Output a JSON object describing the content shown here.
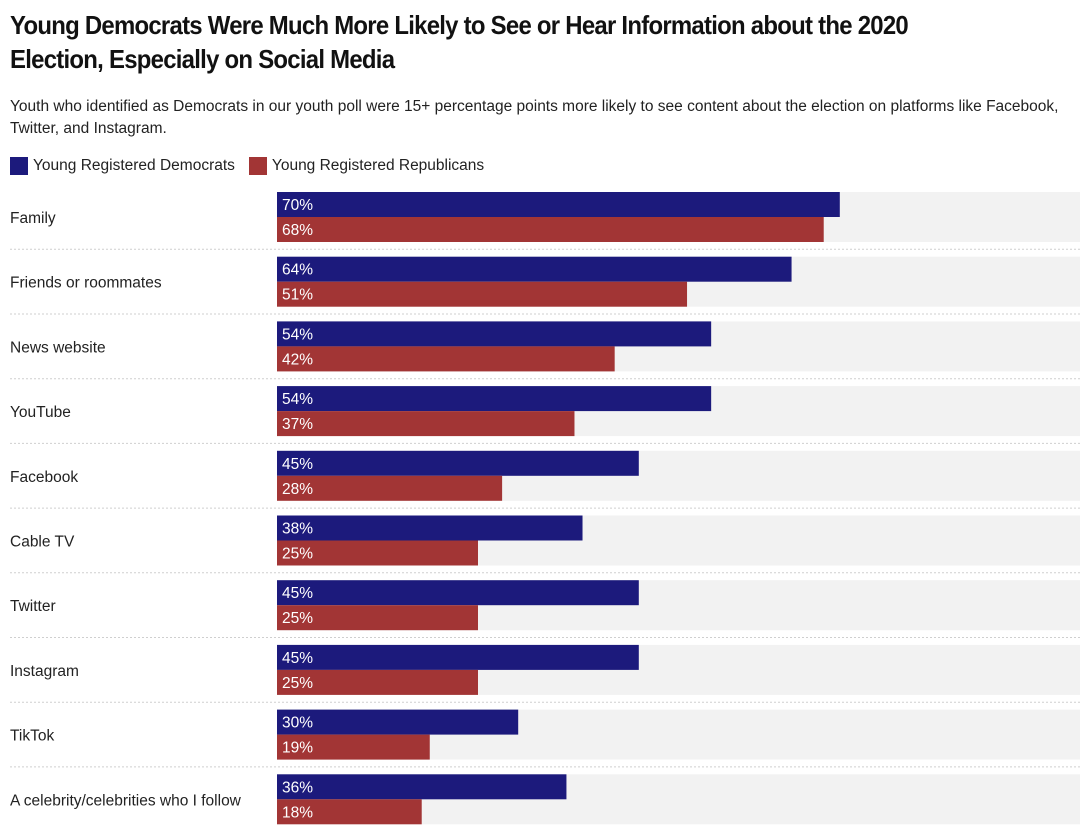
{
  "chart_data": {
    "type": "bar",
    "orientation": "horizontal",
    "title": "Young Democrats Were Much More Likely to See or Hear Information about the 2020 Election, Especially on Social Media",
    "subtitle": "Youth who identified as Democrats in our youth poll were 15+ percentage points more likely to see content about the election on platforms like Facebook, Twitter, and Instagram.",
    "categories": [
      "Family",
      "Friends or roommates",
      "News website",
      "YouTube",
      "Facebook",
      "Cable TV",
      "Twitter",
      "Instagram",
      "TikTok",
      "A celebrity/celebrities who I follow"
    ],
    "series": [
      {
        "name": "Young Registered Democrats",
        "color": "#1c1a7c",
        "values": [
          70,
          64,
          54,
          54,
          45,
          38,
          45,
          45,
          30,
          36
        ]
      },
      {
        "name": "Young Registered Republicans",
        "color": "#a23535",
        "values": [
          68,
          51,
          42,
          37,
          28,
          25,
          25,
          25,
          19,
          18
        ]
      }
    ],
    "value_suffix": "%",
    "xlim": [
      0,
      100
    ],
    "legend_position": "top-left",
    "track_color": "#f2f2f2",
    "grid": false
  }
}
